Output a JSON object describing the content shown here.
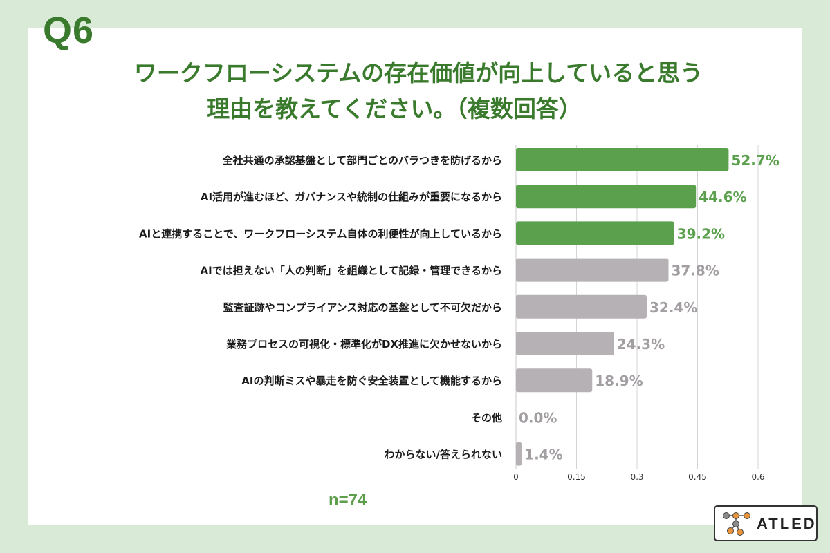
{
  "header": {
    "question_number": "Q6",
    "title_line1": "ワークフローシステムの存在価値が向上していると思う",
    "title_line2": "理由を教えてください。（複数回答）"
  },
  "footer": {
    "sample_size": "n=74"
  },
  "logo": {
    "text": "ATLED"
  },
  "colors": {
    "highlight_bar": "#5ba04c",
    "highlight_label": "#5ba04c",
    "other_bar": "#b5b1b5",
    "other_label": "#a29ea2",
    "title": "#3a7a2c",
    "background": "#d9ead7",
    "logo_orange": "#e8943a",
    "logo_gray": "#8a8a8a"
  },
  "chart_data": {
    "type": "bar",
    "orientation": "horizontal",
    "categories": [
      "全社共通の承認基盤として部門ごとのバラつきを防げるから",
      "AI活用が進むほど、ガバナンスや統制の仕組みが重要になるから",
      "AIと連携することで、ワークフローシステム自体の利便性が向上しているから",
      "AIでは担えない「人の判断」を組織として記録・管理できるから",
      "監査証跡やコンプライアンス対応の基盤として不可欠だから",
      "業務プロセスの可視化・標準化がDX推進に欠かせないから",
      "AIの判断ミスや暴走を防ぐ安全装置として機能するから",
      "その他",
      "わからない/答えられない"
    ],
    "values": [
      0.527,
      0.446,
      0.392,
      0.378,
      0.324,
      0.243,
      0.189,
      0.0,
      0.014
    ],
    "value_labels": [
      "52.7%",
      "44.6%",
      "39.2%",
      "37.8%",
      "32.4%",
      "24.3%",
      "18.9%",
      "0.0%",
      "1.4%"
    ],
    "highlighted": [
      true,
      true,
      true,
      false,
      false,
      false,
      false,
      false,
      false
    ],
    "xlim": [
      0,
      0.6
    ],
    "xticks": [
      "0",
      "0.15",
      "0.3",
      "0.45",
      "0.6"
    ],
    "xtick_values": [
      0,
      0.15,
      0.3,
      0.45,
      0.6
    ],
    "grid": "vertical",
    "title": "ワークフローシステムの存在価値が向上していると思う理由を教えてください。（複数回答）"
  }
}
